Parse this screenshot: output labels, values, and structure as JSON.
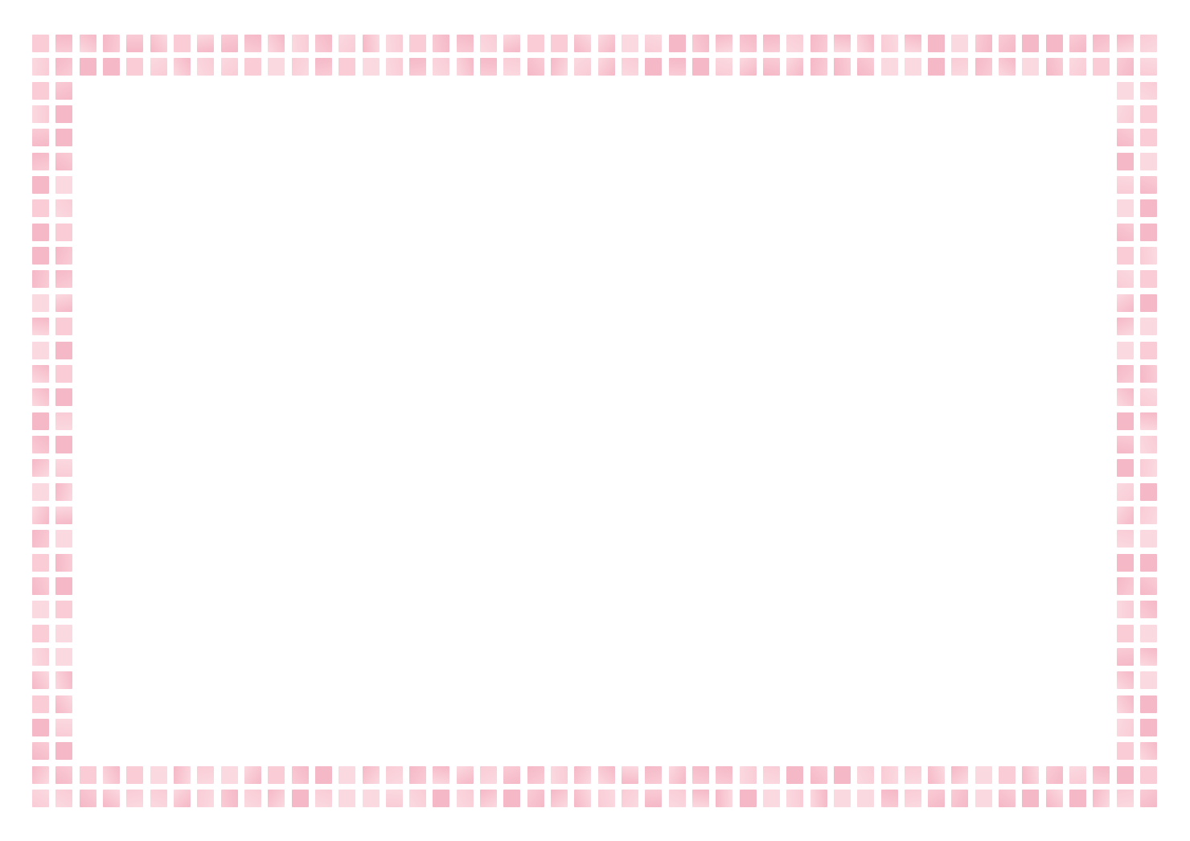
{
  "frame": {
    "style": "mosaic-tile-border",
    "rows_of_tiles": 2,
    "colors": {
      "tile_primary": "#f5b8c6",
      "tile_secondary": "#f9ccd6",
      "tile_light": "#fbd9e0",
      "background": "#ffffff"
    }
  }
}
